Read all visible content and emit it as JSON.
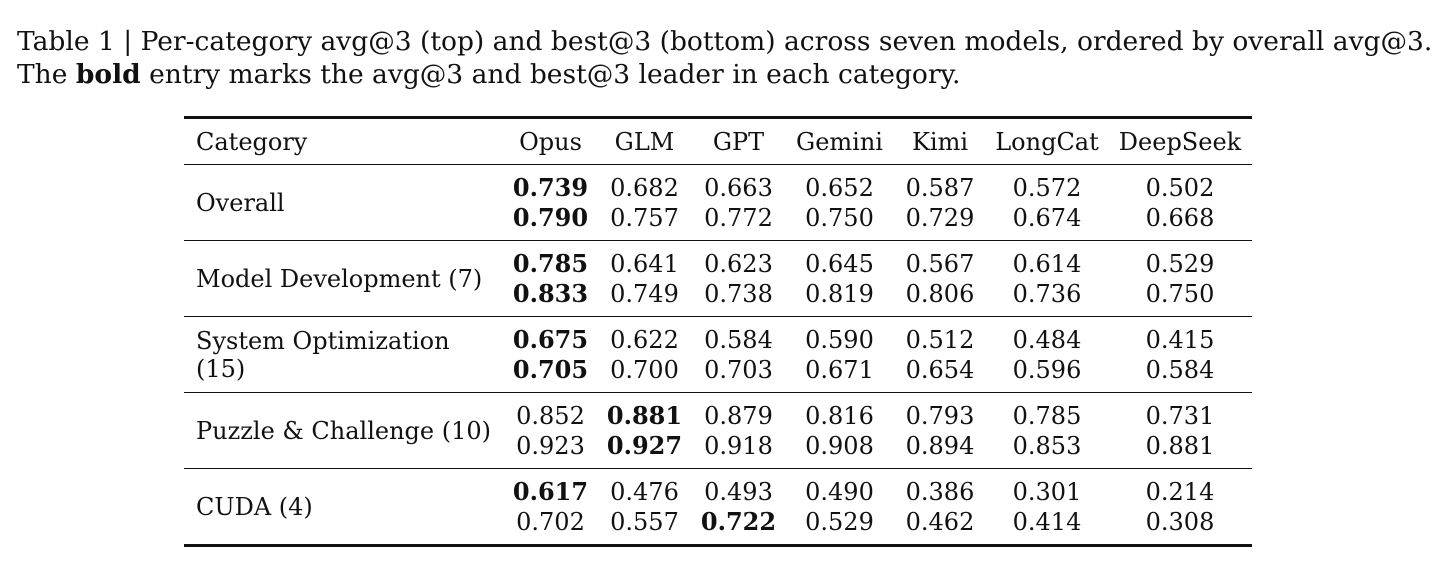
{
  "caption": {
    "line1": "Table 1 | Per-category avg@3 (top) and best@3 (bottom) across seven models, ordered by overall avg@3.",
    "line2_pre": "The ",
    "line2_bold": "bold",
    "line2_post": " entry marks the avg@3 and best@3 leader in each category."
  },
  "table": {
    "header": {
      "category": "Category",
      "models": [
        "Opus",
        "GLM",
        "GPT",
        "Gemini",
        "Kimi",
        "LongCat",
        "DeepSeek"
      ]
    },
    "rows": [
      {
        "category": "Overall",
        "avg": [
          "0.739",
          "0.682",
          "0.663",
          "0.652",
          "0.587",
          "0.572",
          "0.502"
        ],
        "best": [
          "0.790",
          "0.757",
          "0.772",
          "0.750",
          "0.729",
          "0.674",
          "0.668"
        ],
        "avg_bold": [
          0
        ],
        "best_bold": [
          0
        ]
      },
      {
        "category": "Model Development (7)",
        "avg": [
          "0.785",
          "0.641",
          "0.623",
          "0.645",
          "0.567",
          "0.614",
          "0.529"
        ],
        "best": [
          "0.833",
          "0.749",
          "0.738",
          "0.819",
          "0.806",
          "0.736",
          "0.750"
        ],
        "avg_bold": [
          0
        ],
        "best_bold": [
          0
        ]
      },
      {
        "category": "System Optimization (15)",
        "avg": [
          "0.675",
          "0.622",
          "0.584",
          "0.590",
          "0.512",
          "0.484",
          "0.415"
        ],
        "best": [
          "0.705",
          "0.700",
          "0.703",
          "0.671",
          "0.654",
          "0.596",
          "0.584"
        ],
        "avg_bold": [
          0
        ],
        "best_bold": [
          0
        ]
      },
      {
        "category": "Puzzle & Challenge (10)",
        "avg": [
          "0.852",
          "0.881",
          "0.879",
          "0.816",
          "0.793",
          "0.785",
          "0.731"
        ],
        "best": [
          "0.923",
          "0.927",
          "0.918",
          "0.908",
          "0.894",
          "0.853",
          "0.881"
        ],
        "avg_bold": [
          1
        ],
        "best_bold": [
          1
        ]
      },
      {
        "category": "CUDA (4)",
        "avg": [
          "0.617",
          "0.476",
          "0.493",
          "0.490",
          "0.386",
          "0.301",
          "0.214"
        ],
        "best": [
          "0.702",
          "0.557",
          "0.722",
          "0.529",
          "0.462",
          "0.414",
          "0.308"
        ],
        "avg_bold": [
          0
        ],
        "best_bold": [
          2
        ]
      }
    ]
  }
}
